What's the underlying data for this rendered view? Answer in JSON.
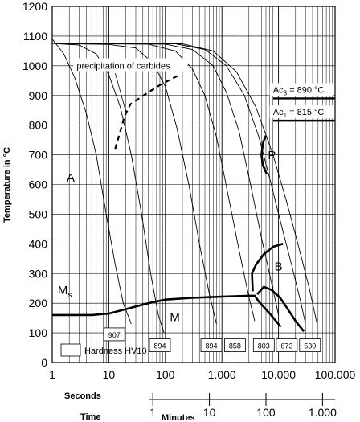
{
  "chart_data": {
    "type": "line",
    "title": "",
    "ylabel": "Temperature in °C",
    "ylim": [
      0,
      1200
    ],
    "yticks": [
      "0",
      "100",
      "200",
      "300",
      "400",
      "500",
      "600",
      "700",
      "800",
      "900",
      "1000",
      "1100",
      "1200"
    ],
    "xscale": "log",
    "xlim": [
      1,
      100000
    ],
    "x_primary": {
      "label": "Seconds",
      "ticks": [
        "1",
        "10",
        "100",
        "1.000",
        "10.000",
        "100.000"
      ]
    },
    "x_secondary": {
      "label": "Time",
      "unit_label": "Minutes",
      "ticks": [
        "1",
        "10",
        "100",
        "1.000"
      ]
    },
    "grid": true,
    "critical_temperatures": [
      {
        "name": "Ac3",
        "text": "Ac",
        "sub": "3",
        "value_text": "= 890 °C",
        "value": 890
      },
      {
        "name": "Ac1",
        "text": "Ac",
        "sub": "1",
        "value_text": "= 815 °C",
        "value": 815
      }
    ],
    "region_labels": {
      "austenite": "A",
      "pearlite": "P",
      "bainite": "B",
      "martensite": "M",
      "ms_main": "M",
      "ms_sub": "s"
    },
    "carbide_label": "precipitation of carbides",
    "hardness_legend": "Hardness HV10",
    "hardness_values": [
      {
        "text": "907",
        "x": 12.5,
        "y": 95
      },
      {
        "text": "894",
        "x": 80,
        "y": 58
      },
      {
        "text": "894",
        "x": 650,
        "y": 58
      },
      {
        "text": "858",
        "x": 1700,
        "y": 58
      },
      {
        "text": "803",
        "x": 5500,
        "y": 58
      },
      {
        "text": "673",
        "x": 14000,
        "y": 58
      },
      {
        "text": "530",
        "x": 36000,
        "y": 58
      }
    ],
    "cooling_curves": [
      [
        [
          1,
          1090
        ],
        [
          1.6,
          1040
        ],
        [
          2.5,
          960
        ],
        [
          4,
          840
        ],
        [
          6,
          700
        ],
        [
          9,
          500
        ],
        [
          13,
          330
        ],
        [
          18,
          200
        ],
        [
          25,
          130
        ]
      ],
      [
        [
          1,
          1075
        ],
        [
          3,
          1070
        ],
        [
          6,
          1040
        ],
        [
          10,
          970
        ],
        [
          16,
          860
        ],
        [
          25,
          700
        ],
        [
          38,
          500
        ],
        [
          55,
          300
        ],
        [
          75,
          160
        ],
        [
          95,
          100
        ]
      ],
      [
        [
          1,
          1075
        ],
        [
          10,
          1072
        ],
        [
          30,
          1060
        ],
        [
          60,
          1010
        ],
        [
          100,
          930
        ],
        [
          160,
          790
        ],
        [
          260,
          600
        ],
        [
          400,
          400
        ],
        [
          600,
          230
        ],
        [
          800,
          130
        ]
      ],
      [
        [
          1,
          1075
        ],
        [
          50,
          1073
        ],
        [
          150,
          1050
        ],
        [
          300,
          990
        ],
        [
          500,
          900
        ],
        [
          800,
          760
        ],
        [
          1300,
          560
        ],
        [
          2000,
          380
        ],
        [
          3000,
          220
        ],
        [
          3800,
          140
        ]
      ],
      [
        [
          1,
          1075
        ],
        [
          100,
          1073
        ],
        [
          300,
          1055
        ],
        [
          700,
          1000
        ],
        [
          1200,
          910
        ],
        [
          2000,
          780
        ],
        [
          3200,
          600
        ],
        [
          5000,
          420
        ],
        [
          7500,
          270
        ],
        [
          10000,
          160
        ]
      ],
      [
        [
          1,
          1075
        ],
        [
          150,
          1074
        ],
        [
          500,
          1055
        ],
        [
          1200,
          1000
        ],
        [
          2500,
          900
        ],
        [
          4500,
          760
        ],
        [
          7000,
          620
        ],
        [
          11000,
          470
        ],
        [
          17000,
          330
        ],
        [
          25000,
          200
        ],
        [
          30000,
          130
        ]
      ],
      [
        [
          1,
          1075
        ],
        [
          200,
          1074
        ],
        [
          700,
          1050
        ],
        [
          1800,
          980
        ],
        [
          4000,
          860
        ],
        [
          8000,
          700
        ],
        [
          14000,
          540
        ],
        [
          22000,
          400
        ],
        [
          35000,
          250
        ],
        [
          48000,
          130
        ]
      ]
    ],
    "carbide_curve": [
      [
        13,
        720
      ],
      [
        16,
        780
      ],
      [
        19,
        830
      ],
      [
        24,
        870
      ],
      [
        45,
        905
      ],
      [
        80,
        935
      ],
      [
        180,
        970
      ]
    ],
    "pearlite_curve": [
      [
        6000,
        765
      ],
      [
        5300,
        740
      ],
      [
        5000,
        700
      ],
      [
        5300,
        665
      ],
      [
        6200,
        635
      ]
    ],
    "bainite_curve": [
      [
        3500,
        240
      ],
      [
        3400,
        300
      ],
      [
        4000,
        330
      ],
      [
        5500,
        365
      ],
      [
        8000,
        390
      ],
      [
        12000,
        400
      ]
    ],
    "bainite_lower_curve": [
      [
        4200,
        230
      ],
      [
        5500,
        255
      ],
      [
        7500,
        245
      ],
      [
        10500,
        220
      ],
      [
        14000,
        185
      ],
      [
        20000,
        140
      ],
      [
        28000,
        105
      ]
    ],
    "ms_curve": [
      [
        1,
        160
      ],
      [
        5,
        160
      ],
      [
        10,
        165
      ],
      [
        20,
        180
      ],
      [
        50,
        200
      ],
      [
        100,
        212
      ],
      [
        300,
        218
      ],
      [
        1000,
        222
      ],
      [
        3000,
        225
      ],
      [
        3800,
        225
      ],
      [
        4500,
        205
      ],
      [
        7000,
        165
      ],
      [
        11000,
        120
      ]
    ]
  }
}
